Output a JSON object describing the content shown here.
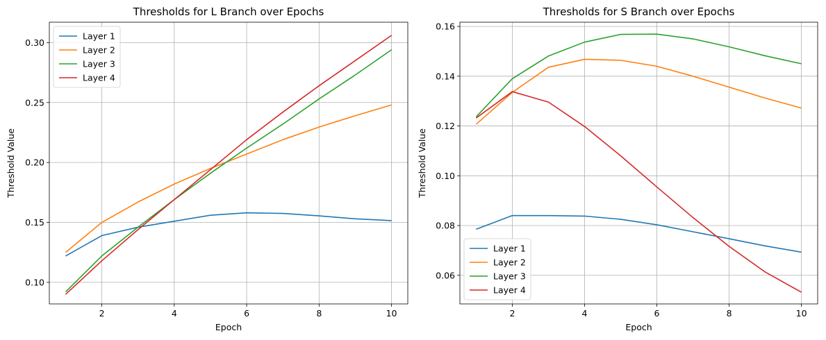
{
  "chart_data": [
    {
      "type": "line",
      "title": "Thresholds for L Branch over Epochs",
      "xlabel": "Epoch",
      "ylabel": "Threshold Value",
      "x": [
        1,
        2,
        3,
        4,
        5,
        6,
        7,
        8,
        9,
        10
      ],
      "xlim": [
        0.55,
        10.45
      ],
      "ylim": [
        0.082,
        0.317
      ],
      "xticks": [
        2,
        4,
        6,
        8,
        10
      ],
      "xtick_labels": [
        "2",
        "4",
        "6",
        "8",
        "10"
      ],
      "yticks": [
        0.1,
        0.15,
        0.2,
        0.25,
        0.3
      ],
      "ytick_labels": [
        "0.10",
        "0.15",
        "0.20",
        "0.25",
        "0.30"
      ],
      "grid": true,
      "legend_position": "upper left",
      "series": [
        {
          "name": "Layer 1",
          "color": "#1f77b4",
          "values": [
            0.122,
            0.139,
            0.146,
            0.151,
            0.156,
            0.158,
            0.1575,
            0.1555,
            0.153,
            0.1515
          ]
        },
        {
          "name": "Layer 2",
          "color": "#ff7f0e",
          "values": [
            0.125,
            0.15,
            0.167,
            0.182,
            0.195,
            0.207,
            0.219,
            0.2295,
            0.239,
            0.248
          ]
        },
        {
          "name": "Layer 3",
          "color": "#2ca02c",
          "values": [
            0.092,
            0.122,
            0.146,
            0.169,
            0.191,
            0.212,
            0.232,
            0.253,
            0.273,
            0.294
          ]
        },
        {
          "name": "Layer 4",
          "color": "#d62728",
          "values": [
            0.09,
            0.118,
            0.144,
            0.169,
            0.194,
            0.219,
            0.242,
            0.264,
            0.285,
            0.306
          ]
        }
      ]
    },
    {
      "type": "line",
      "title": "Thresholds for S Branch over Epochs",
      "xlabel": "Epoch",
      "ylabel": "Threshold Value",
      "x": [
        1,
        2,
        3,
        4,
        5,
        6,
        7,
        8,
        9,
        10
      ],
      "xlim": [
        0.55,
        10.45
      ],
      "ylim": [
        0.0485,
        0.1617
      ],
      "xticks": [
        2,
        4,
        6,
        8,
        10
      ],
      "xtick_labels": [
        "2",
        "4",
        "6",
        "8",
        "10"
      ],
      "yticks": [
        0.06,
        0.08,
        0.1,
        0.12,
        0.14,
        0.16
      ],
      "ytick_labels": [
        "0.06",
        "0.08",
        "0.10",
        "0.12",
        "0.14",
        "0.16"
      ],
      "grid": true,
      "legend_position": "lower left",
      "series": [
        {
          "name": "Layer 1",
          "color": "#1f77b4",
          "values": [
            0.0785,
            0.084,
            0.084,
            0.0838,
            0.0825,
            0.0803,
            0.0775,
            0.0747,
            0.0718,
            0.0693
          ]
        },
        {
          "name": "Layer 2",
          "color": "#ff7f0e",
          "values": [
            0.1207,
            0.1335,
            0.1436,
            0.1468,
            0.1464,
            0.144,
            0.14,
            0.1356,
            0.1312,
            0.1272
          ]
        },
        {
          "name": "Layer 3",
          "color": "#2ca02c",
          "values": [
            0.1237,
            0.139,
            0.1481,
            0.1537,
            0.1568,
            0.1569,
            0.155,
            0.1518,
            0.1482,
            0.145
          ]
        },
        {
          "name": "Layer 4",
          "color": "#d62728",
          "values": [
            0.1232,
            0.1338,
            0.1296,
            0.1198,
            0.108,
            0.0955,
            0.0832,
            0.0716,
            0.0613,
            0.0532
          ]
        }
      ]
    }
  ]
}
